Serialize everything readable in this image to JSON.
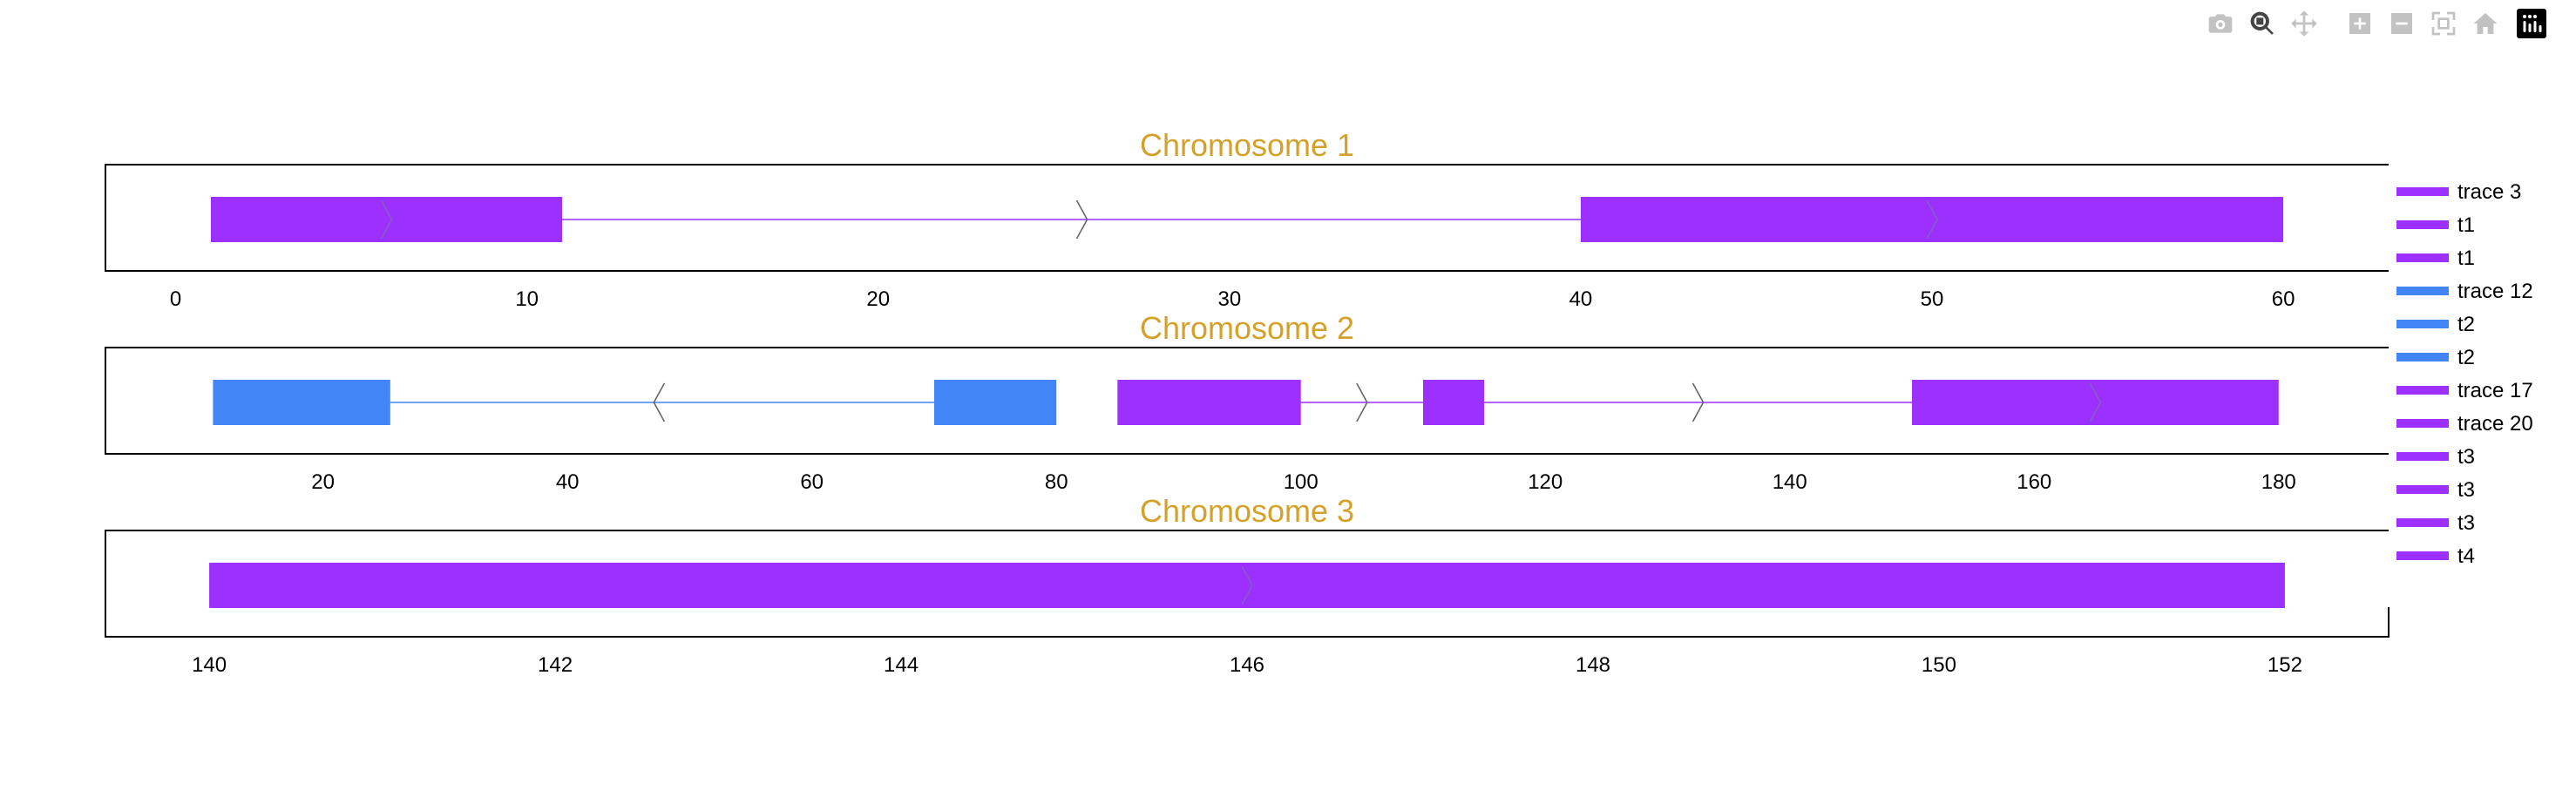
{
  "modebar": {
    "buttons": [
      {
        "name": "camera-icon",
        "active": false
      },
      {
        "name": "zoom-icon",
        "active": true
      },
      {
        "name": "pan-icon",
        "active": false
      },
      {
        "name": "zoom-in-icon",
        "active": false
      },
      {
        "name": "zoom-out-icon",
        "active": false
      },
      {
        "name": "autoscale-icon",
        "active": false
      },
      {
        "name": "reset-axes-icon",
        "active": false
      },
      {
        "name": "plotly-logo-icon",
        "active": false
      }
    ]
  },
  "colors": {
    "purple": "#9b30ff",
    "blue": "#4285f4",
    "title": "#d4a22a",
    "axis": "#000000"
  },
  "legend": {
    "entries": [
      {
        "label": "trace 3",
        "color": "#9b30ff"
      },
      {
        "label": "t1",
        "color": "#9b30ff"
      },
      {
        "label": "t1",
        "color": "#9b30ff"
      },
      {
        "label": "trace 12",
        "color": "#4285f4"
      },
      {
        "label": "t2",
        "color": "#4285f4"
      },
      {
        "label": "t2",
        "color": "#4285f4"
      },
      {
        "label": "trace 17",
        "color": "#9b30ff"
      },
      {
        "label": "trace 20",
        "color": "#9b30ff"
      },
      {
        "label": "t3",
        "color": "#9b30ff"
      },
      {
        "label": "t3",
        "color": "#9b30ff"
      },
      {
        "label": "t3",
        "color": "#9b30ff"
      },
      {
        "label": "t4",
        "color": "#9b30ff"
      }
    ]
  },
  "chart_data": [
    {
      "type": "gene-track",
      "title": "Chromosome 1",
      "xlim": [
        -2,
        63
      ],
      "ticks": [
        0,
        10,
        20,
        30,
        40,
        50,
        60
      ],
      "features": [
        {
          "kind": "exon",
          "start": 1,
          "end": 11,
          "color": "#9b30ff"
        },
        {
          "kind": "intron",
          "start": 11,
          "end": 40,
          "color": "#9b30ff"
        },
        {
          "kind": "exon",
          "start": 40,
          "end": 60,
          "color": "#9b30ff"
        },
        {
          "kind": "arrow",
          "x": 6,
          "dir": "right",
          "color": "#8a5cc0"
        },
        {
          "kind": "arrow",
          "x": 25.8,
          "dir": "right",
          "color": "#666666"
        },
        {
          "kind": "arrow",
          "x": 50,
          "dir": "right",
          "color": "#8a5cc0"
        }
      ]
    },
    {
      "type": "gene-track",
      "title": "Chromosome 2",
      "xlim": [
        2.2,
        189
      ],
      "ticks": [
        20,
        40,
        60,
        80,
        100,
        120,
        140,
        160,
        180
      ],
      "features": [
        {
          "kind": "exon",
          "start": 11,
          "end": 25.5,
          "color": "#4285f4"
        },
        {
          "kind": "intron",
          "start": 25.5,
          "end": 70,
          "color": "#4285f4"
        },
        {
          "kind": "exon",
          "start": 70,
          "end": 80,
          "color": "#4285f4"
        },
        {
          "kind": "exon",
          "start": 85,
          "end": 100,
          "color": "#9b30ff"
        },
        {
          "kind": "intron",
          "start": 100,
          "end": 110,
          "color": "#9b30ff"
        },
        {
          "kind": "exon",
          "start": 110,
          "end": 115,
          "color": "#9b30ff"
        },
        {
          "kind": "intron",
          "start": 115,
          "end": 150,
          "color": "#9b30ff"
        },
        {
          "kind": "exon",
          "start": 150,
          "end": 180,
          "color": "#9b30ff"
        },
        {
          "kind": "arrow",
          "x": 47.5,
          "dir": "left",
          "color": "#666666"
        },
        {
          "kind": "arrow",
          "x": 105,
          "dir": "right",
          "color": "#666666"
        },
        {
          "kind": "arrow",
          "x": 132.5,
          "dir": "right",
          "color": "#666666"
        },
        {
          "kind": "arrow",
          "x": 165,
          "dir": "right",
          "color": "#8a5cc0"
        }
      ]
    },
    {
      "type": "gene-track",
      "title": "Chromosome 3",
      "xlim": [
        139.4,
        152.6
      ],
      "ticks": [
        140,
        142,
        144,
        146,
        148,
        150,
        152
      ],
      "features": [
        {
          "kind": "exon",
          "start": 140,
          "end": 152,
          "color": "#9b30ff"
        },
        {
          "kind": "arrow",
          "x": 146,
          "dir": "right",
          "color": "#8a5cc0"
        }
      ]
    }
  ]
}
